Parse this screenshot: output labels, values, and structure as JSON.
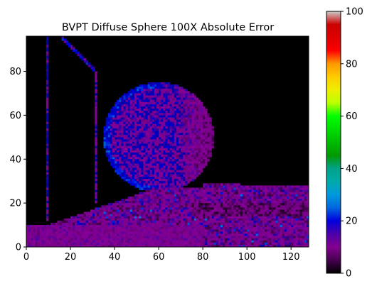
{
  "chart_data": {
    "type": "heatmap",
    "title": "BVPT Diffuse Sphere 100X Absolute Error",
    "xlabel": "",
    "ylabel": "",
    "grid_size": [
      128,
      96
    ],
    "xlim": [
      0,
      128
    ],
    "ylim": [
      0,
      96
    ],
    "x_ticks": [
      0,
      20,
      40,
      60,
      80,
      100,
      120
    ],
    "y_ticks": [
      0,
      20,
      40,
      60,
      80
    ],
    "colormap": "nipy_spectral",
    "colorbar": {
      "min": 0,
      "max": 100,
      "ticks": [
        0,
        20,
        40,
        60,
        80,
        100
      ]
    },
    "features": {
      "background_value": 0,
      "sphere": {
        "center": [
          60,
          50
        ],
        "radius": 25,
        "lit_side_mean": 12,
        "shadow_side_mean": 5
      },
      "floor_noise_mean": 8,
      "vertical_edges": [
        {
          "x": 9,
          "y_from": 12,
          "y_to": 96,
          "mean": 12
        },
        {
          "x": 31,
          "y_from": 20,
          "y_to": 80,
          "mean": 10
        }
      ],
      "diagonal_edge": {
        "from": [
          16,
          96
        ],
        "to": [
          31,
          80
        ],
        "mean": 14
      }
    }
  }
}
